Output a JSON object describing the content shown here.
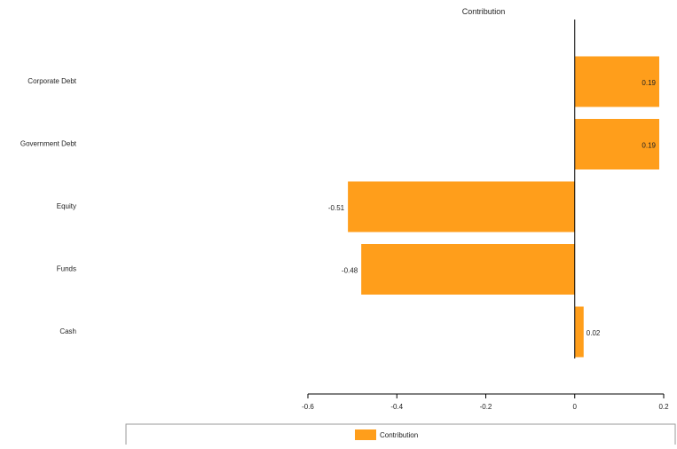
{
  "chart_data": {
    "type": "bar",
    "orientation": "horizontal",
    "title": "Contribution",
    "categories": [
      "Corporate Debt",
      "Government Debt",
      "Equity",
      "Funds",
      "Cash"
    ],
    "series": [
      {
        "name": "Contribution",
        "values": [
          0.19,
          0.19,
          -0.51,
          -0.48,
          0.02
        ],
        "data_labels": [
          "0.19",
          "0.19",
          "-0.51",
          "-0.48",
          "0.02"
        ]
      }
    ],
    "xlim": [
      -0.6,
      0.2
    ],
    "x_ticks": [
      -0.6,
      -0.4,
      -0.2,
      0,
      0.2
    ],
    "x_tick_labels": [
      "-0.6",
      "-0.4",
      "-0.2",
      "0",
      "0.2"
    ],
    "grid": false,
    "legend": {
      "position": "bottom",
      "entries": [
        "Contribution"
      ]
    },
    "colors": {
      "bar": "#FF9E1B",
      "axis": "#000000",
      "text": "#222222",
      "legend_border": "#9a9a9a"
    }
  }
}
